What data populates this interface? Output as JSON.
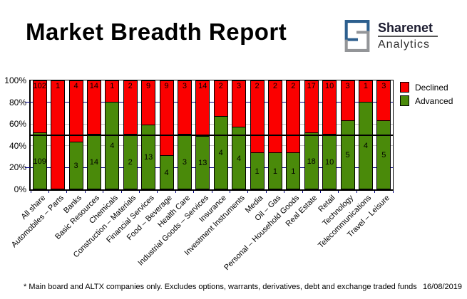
{
  "header": {
    "title": "Market Breadth Report",
    "logo": {
      "brand": "Sharenet",
      "sub": "Analytics",
      "colors": {
        "primary": "#2d5f8e",
        "secondary": "#939598"
      }
    }
  },
  "chart_data": {
    "type": "bar",
    "stacked": true,
    "stacking": "percent",
    "categories": [
      "All share",
      "Automobiles – Parts",
      "Banks",
      "Basic Resources",
      "Chemicals",
      "Construction – Materials",
      "Financial Services",
      "Food – Beverage",
      "Health Care",
      "Industrial Goods – Services",
      "Insurance",
      "Investment Instruments",
      "Media",
      "Oil – Gas",
      "Personal – Household Goods",
      "Real Estate",
      "Retail",
      "Technology",
      "Telecommunications",
      "Travel – Leisure"
    ],
    "series": [
      {
        "name": "Declined",
        "color": "#fb0000",
        "values": [
          102,
          1,
          4,
          14,
          1,
          2,
          9,
          9,
          3,
          14,
          2,
          3,
          2,
          2,
          2,
          17,
          10,
          3,
          1,
          3
        ]
      },
      {
        "name": "Advanced",
        "color": "#4a8a0a",
        "values": [
          109,
          0,
          3,
          14,
          4,
          2,
          13,
          4,
          3,
          13,
          4,
          4,
          1,
          1,
          1,
          18,
          10,
          5,
          4,
          5
        ]
      }
    ],
    "y_ticks": [
      "100%",
      "80%",
      "60%",
      "40%",
      "20%",
      "0%"
    ],
    "ylim": [
      0,
      100
    ],
    "legend_position": "right",
    "grid": {
      "lines": [
        {
          "pct": 80,
          "color": "#000080",
          "outer_tick": true
        },
        {
          "pct": 60,
          "color": "#c0c0c0",
          "outer_tick": false
        },
        {
          "pct": 40,
          "color": "#c0c0c0",
          "outer_tick": false
        },
        {
          "pct": 20,
          "color": "#000080",
          "outer_tick": true
        }
      ],
      "axis_tick_color": "#000080"
    },
    "reference_line": {
      "pct": 50,
      "color": "#000000"
    }
  },
  "footer": {
    "note": "* Main board and ALTX companies only. Excludes options, warrants, derivatives, debt and exchange traded funds",
    "date": "16/08/2019"
  }
}
